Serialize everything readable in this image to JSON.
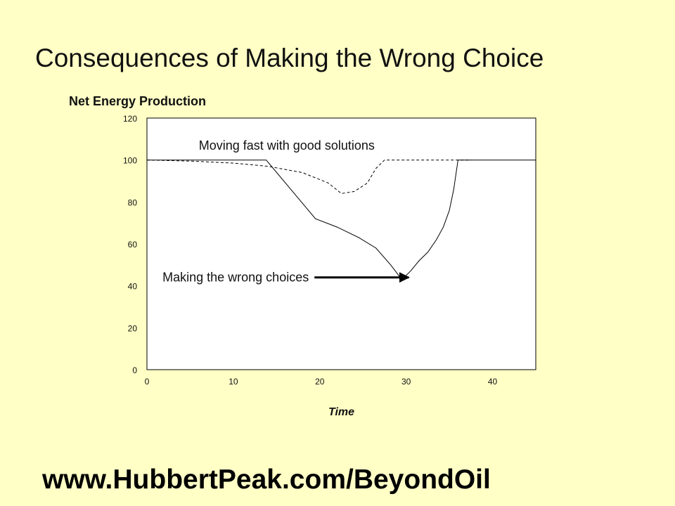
{
  "slide": {
    "title": "Consequences of Making the Wrong Choice",
    "footer_url": "www.HubbertPeak.com/BeyondOil"
  },
  "colors": {
    "background": "#ffffc6",
    "plot_area": "#ffffff",
    "line": "#000000"
  },
  "chart_data": {
    "type": "line",
    "title": "Net Energy Production",
    "xlabel": "Time",
    "ylabel": "",
    "xlim": [
      0,
      45
    ],
    "ylim": [
      0,
      120
    ],
    "x_ticks": [
      0,
      10,
      20,
      30,
      40
    ],
    "y_ticks": [
      0,
      20,
      40,
      60,
      80,
      100,
      120
    ],
    "grid": false,
    "legend": "none",
    "series": [
      {
        "style": "solid",
        "x": [
          0,
          13.8,
          19.5,
          22,
          24.5,
          26.5,
          28.2,
          29.5,
          30.5,
          31.5,
          32.5,
          33.5,
          34.3,
          35,
          35.5,
          36,
          36.5,
          45
        ],
        "y": [
          100,
          100,
          72,
          68,
          63,
          58,
          50,
          43,
          47,
          52,
          56,
          62,
          68,
          76,
          86,
          100,
          100,
          100
        ]
      },
      {
        "style": "dashed",
        "x": [
          0,
          5,
          10,
          14,
          18,
          21,
          22.5,
          24,
          25.5,
          26.5,
          27.5,
          30,
          37,
          37.5
        ],
        "y": [
          100,
          99.5,
          98.5,
          97,
          94,
          89,
          84,
          85,
          89,
          96,
          100,
          100,
          100,
          100
        ]
      }
    ],
    "annotations": [
      {
        "text": "Moving fast with good solutions",
        "x": 6,
        "y": 105
      },
      {
        "text": "Making the wrong choices",
        "x": 1.8,
        "y": 42,
        "arrow_to": [
          30.3,
          42
        ]
      }
    ]
  }
}
